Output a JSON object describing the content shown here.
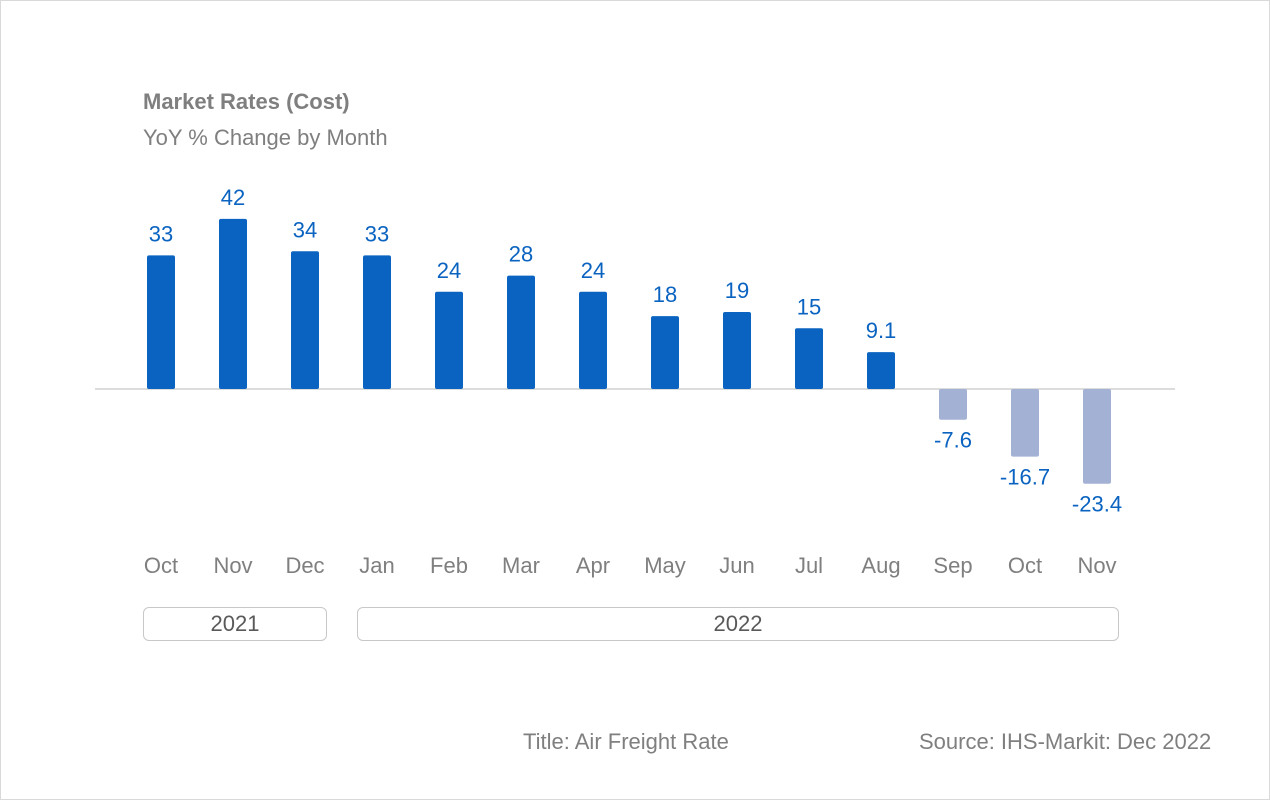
{
  "header": {
    "title": "Market Rates (Cost)",
    "subtitle": "YoY % Change by Month"
  },
  "footer": {
    "title_note": "Title: Air Freight Rate",
    "source": "Source: IHS-Markit: Dec 2022"
  },
  "years": [
    "2021",
    "2022"
  ],
  "colors": {
    "positive": "#0a63c0",
    "negative": "#a3b1d4",
    "label": "#0a63c0",
    "axis_text": "#7f7f7f",
    "baseline": "#d0d0d0"
  },
  "chart_data": {
    "type": "bar",
    "title": "Market Rates (Cost)",
    "subtitle": "YoY % Change by Month",
    "categories": [
      "Oct",
      "Nov",
      "Dec",
      "Jan",
      "Feb",
      "Mar",
      "Apr",
      "May",
      "Jun",
      "Jul",
      "Aug",
      "Sep",
      "Oct",
      "Nov"
    ],
    "values": [
      33,
      42,
      34,
      33,
      24,
      28,
      24,
      18,
      19,
      15,
      9.1,
      -7.6,
      -16.7,
      -23.4
    ],
    "value_labels": [
      "33",
      "42",
      "34",
      "33",
      "24",
      "28",
      "24",
      "18",
      "19",
      "15",
      "9.1",
      "-7.6",
      "-16.7",
      "-23.4"
    ],
    "year_groups": [
      {
        "label": "2021",
        "categories": [
          "Oct",
          "Nov",
          "Dec"
        ]
      },
      {
        "label": "2022",
        "categories": [
          "Jan",
          "Feb",
          "Mar",
          "Apr",
          "May",
          "Jun",
          "Jul",
          "Aug",
          "Sep",
          "Oct",
          "Nov"
        ]
      }
    ],
    "ylim": [
      -25,
      45
    ],
    "grid": false,
    "legend": "none",
    "xlabel": "",
    "ylabel": ""
  }
}
